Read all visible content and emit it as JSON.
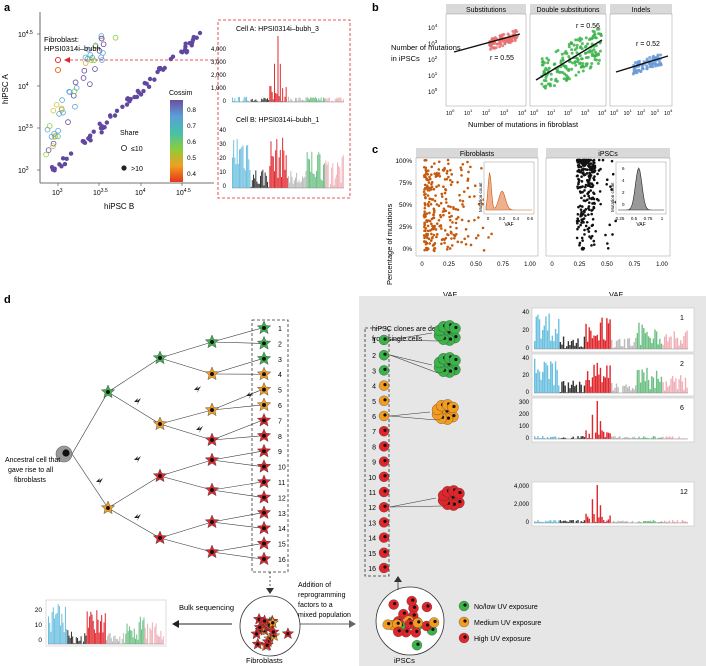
{
  "panel_a": {
    "letter": "a",
    "title_line1": "Fibroblast:",
    "title_line2": "HPSI0314i–bubh",
    "xlabel": "hiPSC B",
    "ylabel": "hiPSC A",
    "x_ticks": [
      "10^3",
      "10^3.5",
      "10^4",
      "10^4.5"
    ],
    "y_ticks": [
      "10^3",
      "10^3.5",
      "10^4",
      "10^4.5"
    ],
    "cossim_title": "Cossim",
    "cossim_ticks": [
      "0.8",
      "0.7",
      "0.6",
      "0.5",
      "0.4"
    ],
    "share_title": "Share",
    "share_le10": "≤10",
    "share_gt10": ">10",
    "cellA_title": "Cell A: HPSI0314i–bubh_3",
    "cellA_ticks": [
      "4,000",
      "3,000",
      "2,000",
      "1,000",
      "0"
    ],
    "cellB_title": "Cell B: HPSI0314i–bubh_1",
    "cellB_ticks": [
      "40",
      "30",
      "20",
      "10",
      "0"
    ]
  },
  "panel_b": {
    "letter": "b",
    "facets": [
      "Substitutions",
      "Double substitutions",
      "Indels"
    ],
    "r_values": [
      "r = 0.55",
      "r = 0.56",
      "r = 0.52"
    ],
    "ylabel_line1": "Number of mutations",
    "ylabel_line2": "in iPSCs",
    "xlabel": "Number of mutations in fibroblast",
    "y_ticks": [
      "10^4",
      "10^3",
      "10^2",
      "10^1",
      "10^0"
    ],
    "x_ticks": [
      "10^0",
      "10^1",
      "10^2",
      "10^3",
      "10^4"
    ]
  },
  "panel_c": {
    "letter": "c",
    "facets": [
      "Fibroblasts",
      "iPSCs"
    ],
    "ylabel": "Percentage of mutations",
    "y_ticks": [
      "100%",
      "75%",
      "50%",
      "25%",
      "0%"
    ],
    "x_ticks": [
      "0",
      "0.25",
      "0.50",
      "0.75",
      "1.00"
    ],
    "xlabel": "VAF",
    "inset_ylabel": "Mutation count",
    "inset_xlabel": "VAF",
    "inset1_ticks": [
      "0",
      "0.2",
      "0.4",
      "0.6"
    ],
    "inset2_ticks": [
      "0.25",
      "0.5",
      "0.75",
      "1"
    ],
    "inset2_y_ticks": [
      "6",
      "4",
      "2",
      "0"
    ]
  },
  "panel_d": {
    "letter": "d",
    "ancestral_text": [
      "Ancestral cell that",
      "gave rise to all",
      "fibroblasts"
    ],
    "fibroblast_numbers": [
      "1",
      "2",
      "3",
      "4",
      "5",
      "6",
      "7",
      "8",
      "9",
      "10",
      "11",
      "12",
      "13",
      "14",
      "15",
      "16"
    ],
    "ipsc_numbers": [
      "1",
      "2",
      "3",
      "4",
      "5",
      "6",
      "7",
      "8",
      "9",
      "10",
      "11",
      "12",
      "13",
      "14",
      "15",
      "16"
    ],
    "clone_text": [
      "hiPSC clones are derived",
      "from single cells"
    ],
    "addition_text": [
      "Addition of",
      "reprogramming",
      "factors to a",
      "mixed population"
    ],
    "bulk_label": "Bulk sequencing",
    "fibroblasts_label": "Fibroblasts",
    "ipscs_label": "iPSCs",
    "legend": [
      "No/low UV exposure",
      "Medium UV exposure",
      "High UV exposure"
    ],
    "colors": {
      "low": "#3bb34a",
      "medium": "#f39c1f",
      "high": "#e0262b"
    },
    "bulk_ticks": [
      "20",
      "10",
      "0"
    ],
    "spectrum_1": {
      "label": "1",
      "ticks": [
        "40",
        "20",
        "0"
      ]
    },
    "spectrum_2": {
      "label": "2",
      "ticks": [
        "40",
        "20",
        "0"
      ]
    },
    "spectrum_6": {
      "label": "6",
      "ticks": [
        "300",
        "200",
        "100",
        "0"
      ]
    },
    "spectrum_12": {
      "label": "12",
      "ticks": [
        "4,000",
        "2,000",
        "0"
      ]
    }
  }
}
